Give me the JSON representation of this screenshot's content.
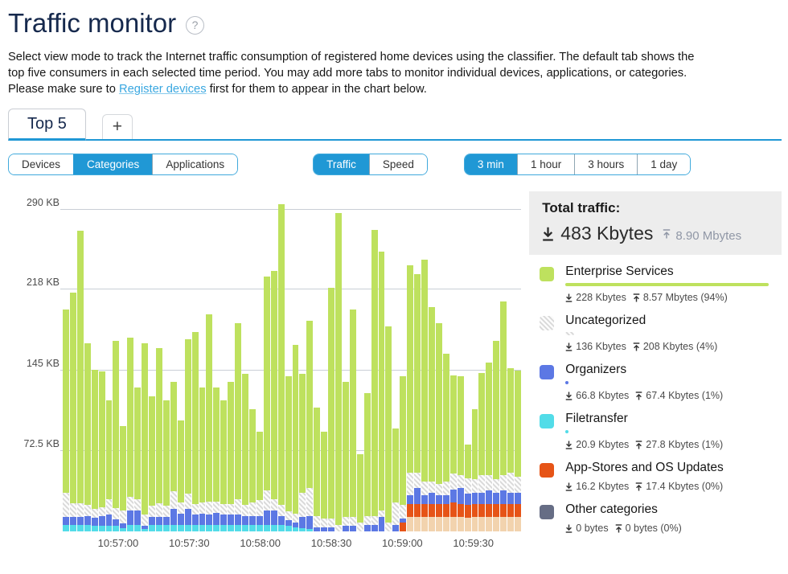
{
  "theme": {
    "accent_blue": "#2098d5",
    "title_navy": "#16294d",
    "link_blue": "#39a7e0",
    "grid_gray": "#c9ced6",
    "total_box_bg": "#ededed",
    "muted_gray": "#9097a6",
    "enterprise_green": "#bee15e",
    "organizers_blue": "#5c78e4",
    "filetransfer_cyan": "#52dce8",
    "appstores_orange": "#e65417",
    "appstores_light_peach": "#f2d3ae",
    "other_slate": "#666d85",
    "uncategorized_pattern": "gray-diagonal-hatch"
  },
  "header": {
    "title": "Traffic monitor",
    "help_glyph": "?"
  },
  "description": {
    "line1": "Select view mode to track the Internet traffic consumption of registered home devices using the classifier. The default tab shows the",
    "line2": "top five consumers in each selected time period. You may add more tabs to monitor individual devices, applications, or categories.",
    "line3_prefix": "Please make sure to ",
    "link_label": "Register devices",
    "line3_suffix": " first for them to appear in the chart below."
  },
  "tabs": {
    "active_label": "Top 5",
    "add_label": "+"
  },
  "controls": {
    "view_modes": [
      {
        "label": "Devices",
        "selected": false
      },
      {
        "label": "Categories",
        "selected": true
      },
      {
        "label": "Applications",
        "selected": false
      }
    ],
    "metric_modes": [
      {
        "label": "Traffic",
        "selected": true
      },
      {
        "label": "Speed",
        "selected": false
      }
    ],
    "time_ranges": [
      {
        "label": "3 min",
        "selected": true
      },
      {
        "label": "1 hour",
        "selected": false
      },
      {
        "label": "3 hours",
        "selected": false
      },
      {
        "label": "1 day",
        "selected": false
      }
    ]
  },
  "totals": {
    "label": "Total traffic:",
    "download": "483 Kbytes",
    "upload": "8.90 Mbytes"
  },
  "legend": {
    "items": [
      {
        "name": "Enterprise Services",
        "key": "enterprise",
        "color": "#bee15e",
        "pattern": false,
        "down": "228 Kbytes",
        "up": "8.57 Mbytes",
        "pct_label": "(94%)",
        "bar_pct": 94
      },
      {
        "name": "Uncategorized",
        "key": "uncategorized",
        "color": "#d8d8d8",
        "pattern": true,
        "down": "136 Kbytes",
        "up": "208 Kbytes",
        "pct_label": "(4%)",
        "bar_pct": 4
      },
      {
        "name": "Organizers",
        "key": "organizers",
        "color": "#5c78e4",
        "pattern": false,
        "down": "66.8 Kbytes",
        "up": "67.4 Kbytes",
        "pct_label": "(1%)",
        "bar_pct": 1
      },
      {
        "name": "Filetransfer",
        "key": "filetransfer",
        "color": "#52dce8",
        "pattern": false,
        "down": "20.9 Kbytes",
        "up": "27.8 Kbytes",
        "pct_label": "(1%)",
        "bar_pct": 1
      },
      {
        "name": "App-Stores and OS Updates",
        "key": "appstores",
        "color": "#e65417",
        "pattern": false,
        "down": "16.2 Kbytes",
        "up": "17.4 Kbytes",
        "pct_label": "(0%)",
        "bar_pct": 0
      },
      {
        "name": "Other categories",
        "key": "other",
        "color": "#666d85",
        "pattern": false,
        "down": "0 bytes",
        "up": "0 bytes",
        "pct_label": "(0%)",
        "bar_pct": 0
      }
    ]
  },
  "chart_data": {
    "type": "bar",
    "stacked": true,
    "unit": "KB",
    "bar_interval_seconds": 3,
    "legend_position": "right",
    "grid": true,
    "y_ticks": [
      {
        "label": "290 KB",
        "kb": 290
      },
      {
        "label": "218 KB",
        "kb": 218
      },
      {
        "label": "145 KB",
        "kb": 145
      },
      {
        "label": "72.5 KB",
        "kb": 72.5
      }
    ],
    "ylim_kb": [
      0,
      300
    ],
    "x_ticks": [
      "10:57:00",
      "10:57:30",
      "10:58:00",
      "10:58:30",
      "10:59:00",
      "10:59:30"
    ],
    "x_tick_pcts": [
      12.1,
      27.6,
      43.1,
      58.6,
      74.1,
      89.6
    ],
    "stack_order": [
      "appstores_light",
      "appstores",
      "filetransfer",
      "organizers",
      "uncategorized",
      "enterprise"
    ],
    "bars_kb": [
      [
        0,
        0,
        6,
        7,
        22,
        165
      ],
      [
        0,
        0,
        6,
        7,
        12,
        190
      ],
      [
        0,
        0,
        6,
        7,
        12,
        246
      ],
      [
        0,
        0,
        6,
        8,
        10,
        146
      ],
      [
        0,
        0,
        5,
        7,
        8,
        126
      ],
      [
        0,
        0,
        5,
        9,
        8,
        122
      ],
      [
        0,
        0,
        5,
        10,
        14,
        89
      ],
      [
        0,
        0,
        5,
        6,
        10,
        151
      ],
      [
        0,
        0,
        3,
        4,
        12,
        76
      ],
      [
        0,
        0,
        6,
        13,
        12,
        144
      ],
      [
        0,
        0,
        6,
        13,
        10,
        101
      ],
      [
        0,
        0,
        2,
        3,
        10,
        155
      ],
      [
        0,
        0,
        6,
        7,
        10,
        99
      ],
      [
        0,
        0,
        6,
        7,
        12,
        140
      ],
      [
        0,
        0,
        6,
        7,
        10,
        95
      ],
      [
        0,
        0,
        6,
        14,
        16,
        99
      ],
      [
        0,
        0,
        6,
        10,
        10,
        74
      ],
      [
        0,
        0,
        6,
        14,
        14,
        139
      ],
      [
        0,
        0,
        6,
        9,
        10,
        155
      ],
      [
        0,
        0,
        6,
        10,
        10,
        104
      ],
      [
        0,
        0,
        6,
        9,
        12,
        169
      ],
      [
        0,
        0,
        6,
        11,
        10,
        103
      ],
      [
        0,
        0,
        6,
        9,
        10,
        93
      ],
      [
        0,
        0,
        6,
        9,
        10,
        110
      ],
      [
        0,
        0,
        6,
        9,
        14,
        159
      ],
      [
        0,
        0,
        6,
        8,
        10,
        118
      ],
      [
        0,
        0,
        6,
        8,
        12,
        84
      ],
      [
        0,
        0,
        6,
        8,
        14,
        62
      ],
      [
        0,
        0,
        6,
        13,
        18,
        193
      ],
      [
        0,
        0,
        6,
        13,
        10,
        206
      ],
      [
        0,
        0,
        6,
        8,
        10,
        271
      ],
      [
        0,
        0,
        5,
        5,
        8,
        122
      ],
      [
        0,
        0,
        4,
        4,
        8,
        152
      ],
      [
        0,
        0,
        3,
        10,
        22,
        107
      ],
      [
        0,
        0,
        2,
        12,
        25,
        151
      ],
      [
        0,
        0,
        0,
        4,
        10,
        98
      ],
      [
        0,
        0,
        0,
        4,
        8,
        78
      ],
      [
        0,
        0,
        0,
        4,
        8,
        208
      ],
      [
        0,
        0,
        0,
        0,
        6,
        281
      ],
      [
        0,
        0,
        0,
        5,
        8,
        122
      ],
      [
        0,
        0,
        0,
        5,
        8,
        187
      ],
      [
        0,
        0,
        0,
        0,
        8,
        62
      ],
      [
        0,
        0,
        0,
        6,
        8,
        111
      ],
      [
        0,
        0,
        0,
        6,
        8,
        258
      ],
      [
        0,
        0,
        0,
        13,
        6,
        233
      ],
      [
        0,
        0,
        0,
        0,
        8,
        177
      ],
      [
        0,
        0,
        0,
        6,
        20,
        67
      ],
      [
        0,
        8,
        0,
        4,
        12,
        116
      ],
      [
        13,
        12,
        0,
        8,
        20,
        187
      ],
      [
        13,
        12,
        0,
        14,
        14,
        179
      ],
      [
        13,
        12,
        0,
        8,
        12,
        200
      ],
      [
        13,
        12,
        0,
        10,
        10,
        157
      ],
      [
        13,
        12,
        0,
        8,
        10,
        145
      ],
      [
        13,
        12,
        0,
        8,
        12,
        115
      ],
      [
        13,
        13,
        0,
        12,
        14,
        89
      ],
      [
        13,
        12,
        0,
        14,
        12,
        89
      ],
      [
        12,
        12,
        0,
        10,
        14,
        30
      ],
      [
        13,
        12,
        0,
        10,
        12,
        63
      ],
      [
        13,
        12,
        0,
        10,
        16,
        92
      ],
      [
        13,
        12,
        0,
        12,
        14,
        101
      ],
      [
        13,
        12,
        0,
        10,
        12,
        125
      ],
      [
        13,
        12,
        0,
        12,
        14,
        156
      ],
      [
        13,
        12,
        0,
        10,
        18,
        94
      ],
      [
        13,
        12,
        0,
        10,
        14,
        96
      ]
    ]
  }
}
